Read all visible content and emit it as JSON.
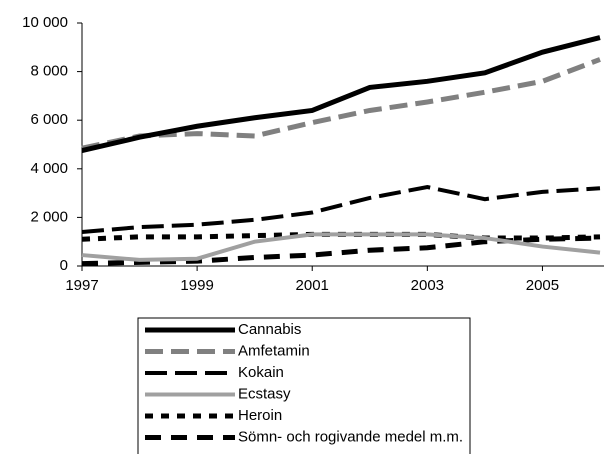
{
  "chart_data": {
    "type": "line",
    "x": [
      1997,
      1998,
      1999,
      2000,
      2001,
      2002,
      2003,
      2004,
      2005,
      2006
    ],
    "xlim": [
      1997,
      2006
    ],
    "xticks": [
      1997,
      1999,
      2001,
      2003,
      2005
    ],
    "ylim": [
      0,
      10000
    ],
    "yticks": [
      0,
      {
        "value": 2000,
        "label": "2 000"
      },
      {
        "value": 4000,
        "label": "4 000"
      },
      {
        "value": 6000,
        "label": "6 000"
      },
      {
        "value": 8000,
        "label": "8 000"
      },
      {
        "value": 10000,
        "label": "10 000"
      }
    ],
    "grid": false,
    "series": [
      {
        "name": "Cannabis",
        "color": "#000000",
        "values": [
          4750,
          5300,
          5750,
          6100,
          6400,
          7350,
          7600,
          7950,
          8800,
          9400
        ]
      },
      {
        "name": "Amfetamin",
        "color": "#808080",
        "values": [
          4850,
          5350,
          5450,
          5350,
          5900,
          6400,
          6750,
          7150,
          7600,
          8500
        ]
      },
      {
        "name": "Kokain",
        "color": "#000000",
        "values": [
          1400,
          1600,
          1700,
          1900,
          2200,
          2800,
          3250,
          2750,
          3050,
          3200
        ]
      },
      {
        "name": "Ecstasy",
        "color": "#a0a0a0",
        "values": [
          450,
          250,
          300,
          1000,
          1300,
          1300,
          1300,
          1150,
          800,
          550
        ]
      },
      {
        "name": "Heroin",
        "color": "#000000",
        "values": [
          1100,
          1200,
          1200,
          1250,
          1300,
          1300,
          1300,
          1150,
          1150,
          1200
        ]
      },
      {
        "name": "Sömn- och rogivande medel m.m.",
        "color": "#000000",
        "values": [
          100,
          150,
          200,
          350,
          450,
          650,
          750,
          1000,
          1100,
          1150
        ]
      }
    ]
  }
}
